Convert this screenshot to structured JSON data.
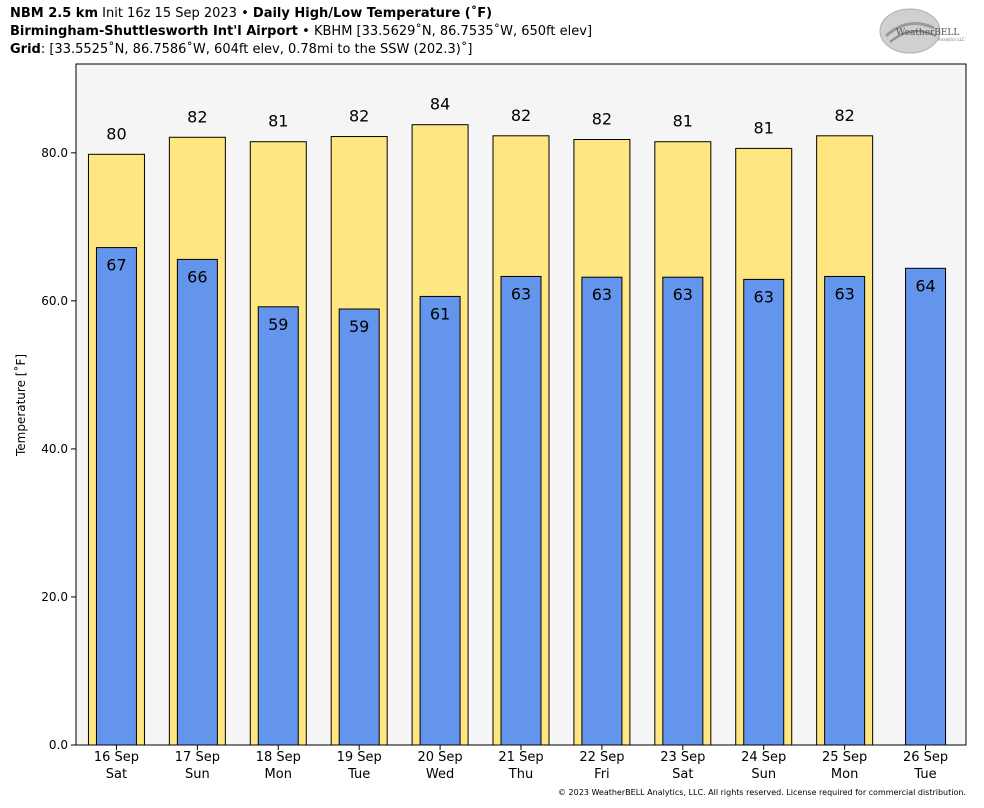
{
  "header": {
    "line1_bold": "NBM 2.5 km",
    "line1_mid": "Init 16z 15 Sep 2023",
    "line1_bold2": "Daily High/Low Temperature (˚F)",
    "line2_bold": "Birmingham-Shuttlesworth Int'l Airport",
    "line2_rest": "KBHM [33.5629˚N, 86.7535˚W, 650ft elev]",
    "line3_bold": "Grid",
    "line3_rest": ": [33.5525˚N, 86.7586˚W, 604ft elev, 0.78mi to the SSW (202.3)˚]",
    "separator": "•"
  },
  "logo": {
    "text_main": "WeatherBELL",
    "text_sub": "Analytics LLC"
  },
  "copyright": "© 2023 WeatherBELL Analytics, LLC. All rights reserved. License required for commercial distribution.",
  "chart_data": {
    "type": "bar",
    "ylabel": "Temperature [˚F]",
    "ylim": [
      0,
      92
    ],
    "yticks": [
      0,
      20,
      40,
      60,
      80
    ],
    "ytick_labels": [
      "0.0",
      "20.0",
      "40.0",
      "60.0",
      "80.0"
    ],
    "categories": [
      [
        "16 Sep",
        "Sat"
      ],
      [
        "17 Sep",
        "Sun"
      ],
      [
        "18 Sep",
        "Mon"
      ],
      [
        "19 Sep",
        "Tue"
      ],
      [
        "20 Sep",
        "Wed"
      ],
      [
        "21 Sep",
        "Thu"
      ],
      [
        "22 Sep",
        "Fri"
      ],
      [
        "23 Sep",
        "Sat"
      ],
      [
        "24 Sep",
        "Sun"
      ],
      [
        "25 Sep",
        "Mon"
      ],
      [
        "26 Sep",
        "Tue"
      ]
    ],
    "series": [
      {
        "name": "High",
        "color": "#ffe680",
        "values": [
          79.8,
          82.1,
          81.5,
          82.2,
          83.8,
          82.3,
          81.8,
          81.5,
          80.6,
          82.3,
          null
        ],
        "labels": [
          "80",
          "82",
          "81",
          "82",
          "84",
          "82",
          "82",
          "81",
          "81",
          "82",
          null
        ]
      },
      {
        "name": "Low",
        "color": "#6495ed",
        "values": [
          67.2,
          65.6,
          59.2,
          58.9,
          60.6,
          63.3,
          63.2,
          63.2,
          62.9,
          63.3,
          64.4
        ],
        "labels": [
          "67",
          "66",
          "59",
          "59",
          "61",
          "63",
          "63",
          "63",
          "63",
          "63",
          "64"
        ]
      }
    ],
    "colors": {
      "plot_background": "#f5f5f5",
      "high": "#ffe680",
      "low": "#6495ed"
    },
    "grid": false,
    "legend": "none"
  }
}
